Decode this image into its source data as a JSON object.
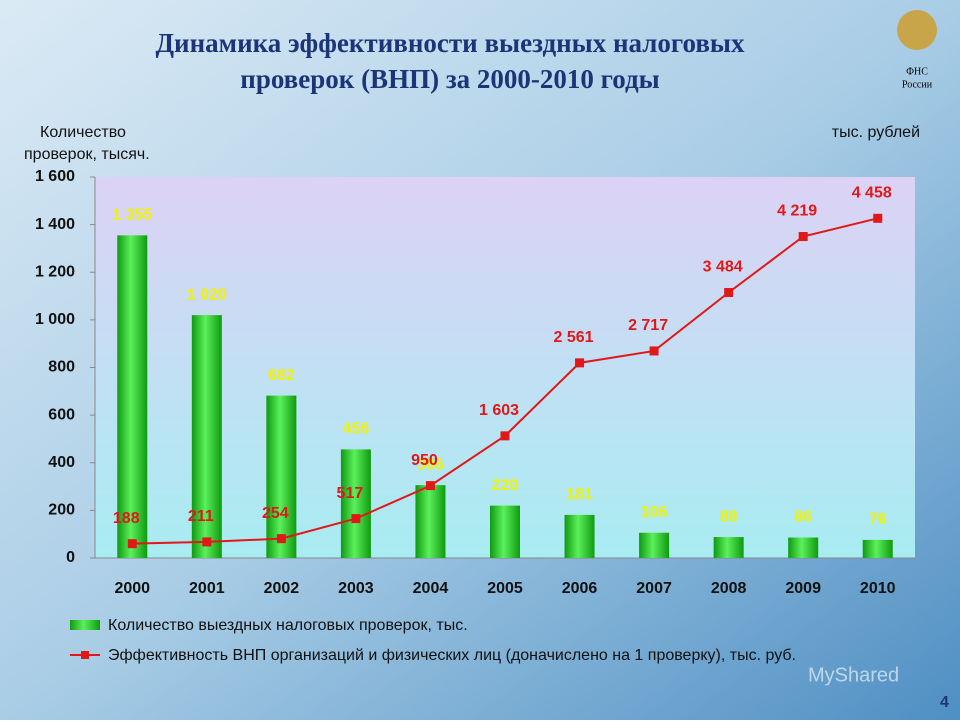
{
  "chart_data": {
    "type": "bar_line",
    "title": [
      "Динамика эффективности выездных налоговых",
      "проверок (ВНП) за 2000-2010 годы"
    ],
    "ylabel": [
      "Количество",
      "проверок, тысяч."
    ],
    "y2label": "тыс. рублей",
    "logo": [
      "ФНС",
      "России"
    ],
    "page_number": "4",
    "watermark": "MyShared",
    "categories": [
      "2000",
      "2001",
      "2002",
      "2003",
      "2004",
      "2005",
      "2006",
      "2007",
      "2008",
      "2009",
      "2010"
    ],
    "ylim": [
      0,
      1600
    ],
    "yticks": [
      0,
      200,
      400,
      600,
      800,
      {
        "value": 1000,
        "label": "1 000"
      },
      {
        "value": 1200,
        "label": "1 200"
      },
      {
        "value": 1400,
        "label": "1 400"
      },
      {
        "value": 1600,
        "label": "1 600"
      }
    ],
    "y2lim": [
      0,
      5000
    ],
    "series": [
      {
        "name": "Количество выездных налоговых проверок, тыс.",
        "color": "#1ec81e",
        "values": [
          1355,
          1020,
          682,
          456,
          306,
          220,
          181,
          106,
          88,
          86,
          76
        ],
        "value_labels": [
          "1 355",
          "1 020",
          "682",
          "456",
          "306",
          "220",
          "181",
          "106",
          "88",
          "86",
          "76"
        ]
      },
      {
        "name": "Эффективность ВНП организаций и физических лиц (доначислено на 1 проверку), тыс. руб.",
        "color": "#e01818",
        "axis": "y2",
        "values": [
          188,
          211,
          254,
          517,
          950,
          1603,
          2561,
          2717,
          3484,
          4219,
          4458
        ],
        "value_labels": [
          "188",
          "211",
          "254",
          "517",
          "950",
          "1 603",
          "2 561",
          "2 717",
          "3 484",
          "4 219",
          "4 458"
        ]
      }
    ]
  }
}
